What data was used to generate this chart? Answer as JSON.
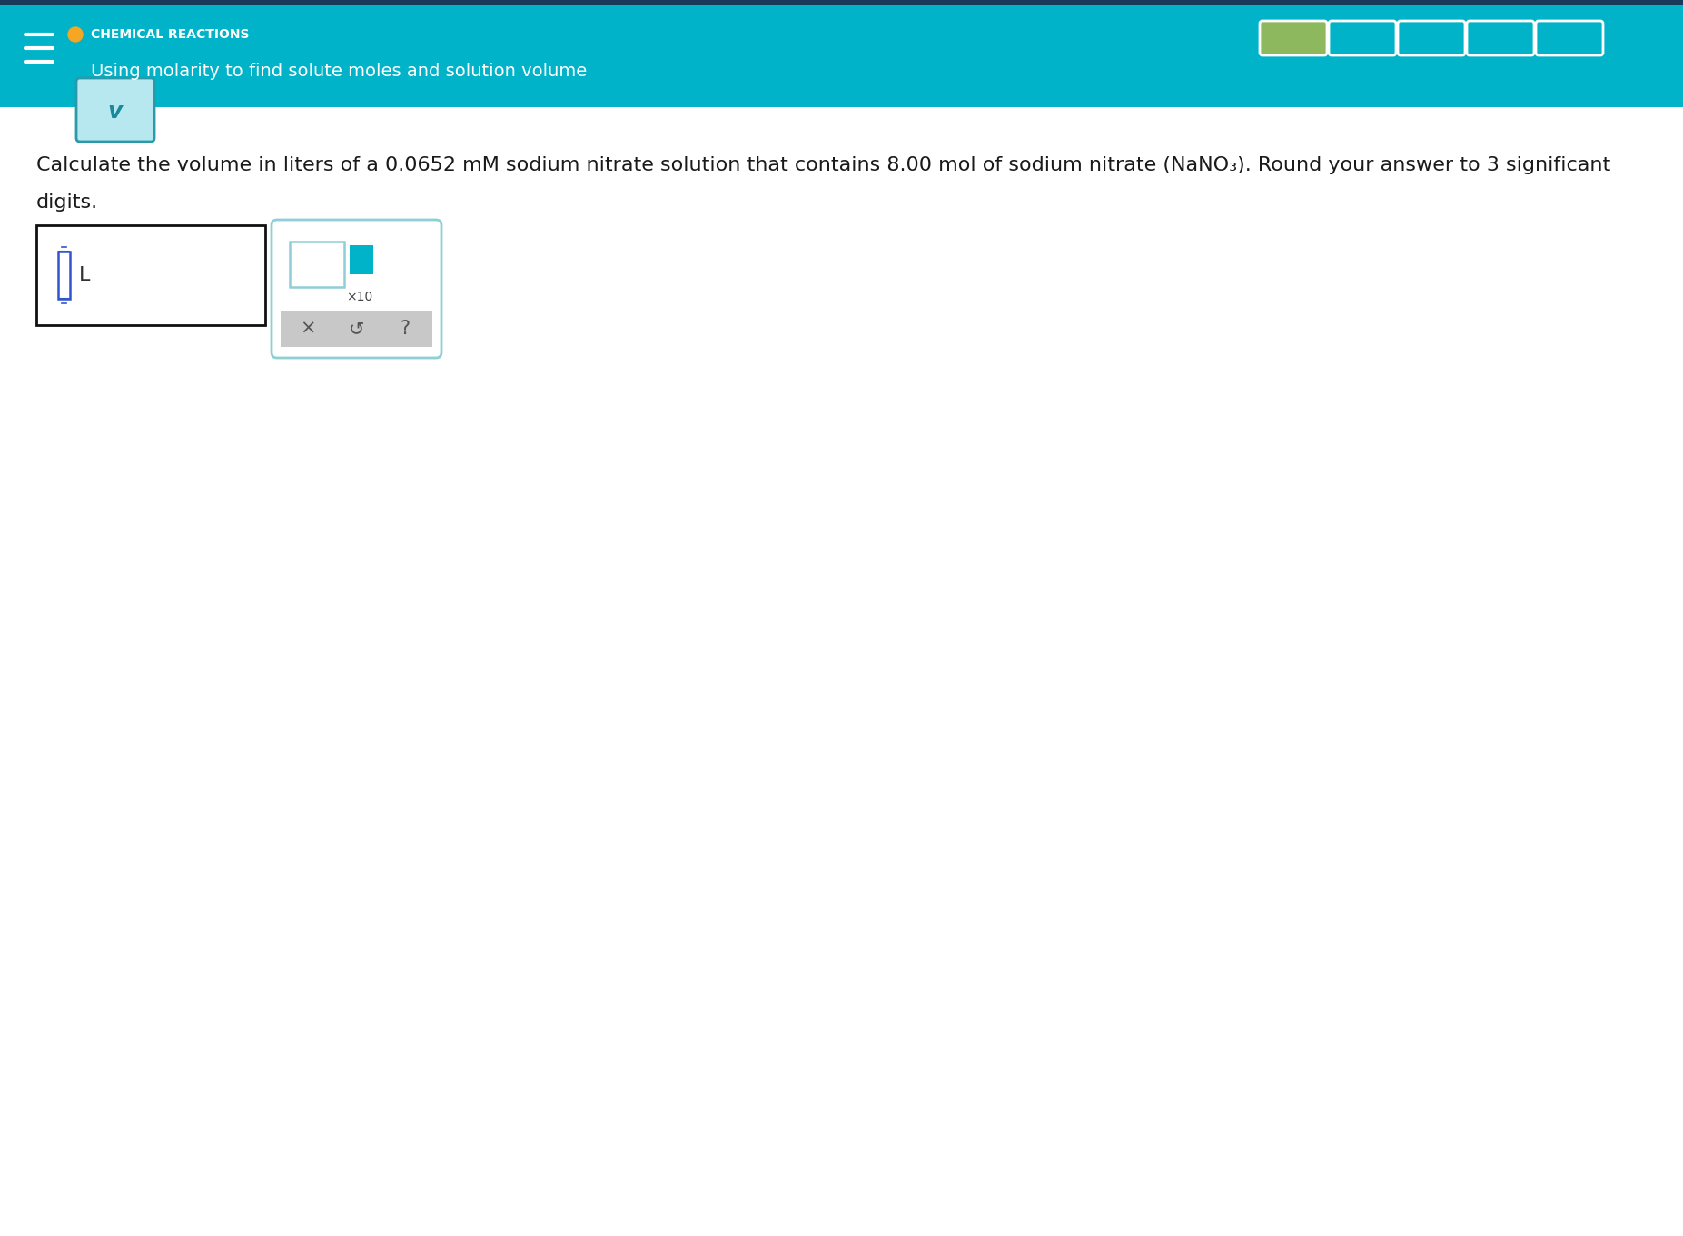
{
  "bg_color": "#ffffff",
  "header_bg": "#00b3c8",
  "header_title": "CHEMICAL REACTIONS",
  "header_title_color": "#ffffff",
  "header_title_fontsize": 10,
  "header_subtitle": "Using molarity to find solute moles and solution volume",
  "header_subtitle_color": "#ffffff",
  "header_subtitle_fontsize": 14,
  "orange_dot_color": "#f5a623",
  "progress_bar_color_first": "#8db85e",
  "progress_bar_color_rest": "#00b3c8",
  "progress_bar_count": 5,
  "nav_border_color": "#1a3a5c",
  "chevron_bg": "#b8e8ef",
  "chevron_border": "#2a9aaa",
  "chevron_symbol": "v",
  "chevron_color": "#1a8a9a",
  "question_line1": "Calculate the volume in liters of a 0.0652 mΜ sodium nitrate solution that contains 8.00 mol of sodium nitrate (NaNO₃). Round your answer to 3 significant",
  "question_line2": "digits.",
  "question_fontsize": 16,
  "question_color": "#1a1a1a",
  "input_cursor_color": "#3355cc",
  "sci_box_edgecolor": "#8ecfd6",
  "action_bar_bg": "#c8c8c8",
  "action_symbols": [
    "×",
    "↺",
    "?"
  ],
  "action_color": "#555555"
}
